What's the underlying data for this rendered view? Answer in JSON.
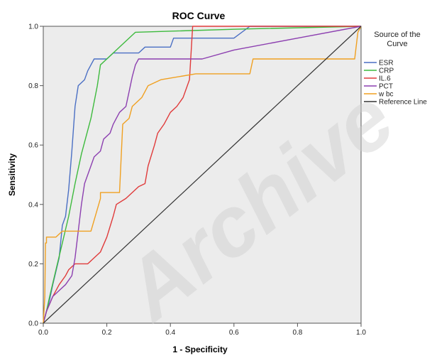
{
  "chart_data": {
    "type": "line",
    "title": "ROC Curve",
    "xlabel": "1 - Specificity",
    "ylabel": "Sensitivity",
    "xlim": [
      0,
      1
    ],
    "ylim": [
      0,
      1
    ],
    "x_ticks": [
      "0.0",
      "0.2",
      "0.4",
      "0.6",
      "0.8",
      "1.0"
    ],
    "y_ticks": [
      "0.0",
      "0.2",
      "0.4",
      "0.6",
      "0.8",
      "1.0"
    ],
    "grid": false,
    "plot_background": "#ececec",
    "legend": {
      "title_lines": [
        "Source of the",
        "Curve"
      ],
      "placement": "right"
    },
    "watermark": "Archive",
    "series": [
      {
        "name": "ESR",
        "color": "#4a6fc4",
        "points": [
          [
            0,
            0
          ],
          [
            0.01,
            0.04
          ],
          [
            0.02,
            0.08
          ],
          [
            0.03,
            0.13
          ],
          [
            0.05,
            0.22
          ],
          [
            0.06,
            0.33
          ],
          [
            0.07,
            0.36
          ],
          [
            0.08,
            0.45
          ],
          [
            0.09,
            0.58
          ],
          [
            0.1,
            0.73
          ],
          [
            0.11,
            0.8
          ],
          [
            0.13,
            0.82
          ],
          [
            0.14,
            0.85
          ],
          [
            0.16,
            0.89
          ],
          [
            0.2,
            0.89
          ],
          [
            0.22,
            0.91
          ],
          [
            0.3,
            0.91
          ],
          [
            0.32,
            0.93
          ],
          [
            0.4,
            0.93
          ],
          [
            0.41,
            0.96
          ],
          [
            0.6,
            0.96
          ],
          [
            0.65,
            1.0
          ],
          [
            1.0,
            1.0
          ]
        ]
      },
      {
        "name": "CRP",
        "color": "#3dba3d",
        "points": [
          [
            0,
            0
          ],
          [
            0.01,
            0.04
          ],
          [
            0.02,
            0.09
          ],
          [
            0.04,
            0.18
          ],
          [
            0.06,
            0.27
          ],
          [
            0.08,
            0.36
          ],
          [
            0.1,
            0.47
          ],
          [
            0.12,
            0.57
          ],
          [
            0.15,
            0.69
          ],
          [
            0.17,
            0.8
          ],
          [
            0.18,
            0.87
          ],
          [
            0.2,
            0.89
          ],
          [
            0.24,
            0.93
          ],
          [
            0.29,
            0.98
          ],
          [
            0.6,
            0.99
          ],
          [
            1.0,
            1.0
          ]
        ]
      },
      {
        "name": "IL.6",
        "color": "#e03a3a",
        "points": [
          [
            0,
            0
          ],
          [
            0.01,
            0.04
          ],
          [
            0.03,
            0.09
          ],
          [
            0.05,
            0.13
          ],
          [
            0.07,
            0.16
          ],
          [
            0.08,
            0.18
          ],
          [
            0.1,
            0.2
          ],
          [
            0.14,
            0.2
          ],
          [
            0.16,
            0.22
          ],
          [
            0.18,
            0.24
          ],
          [
            0.2,
            0.29
          ],
          [
            0.22,
            0.36
          ],
          [
            0.23,
            0.4
          ],
          [
            0.26,
            0.42
          ],
          [
            0.28,
            0.44
          ],
          [
            0.3,
            0.46
          ],
          [
            0.32,
            0.47
          ],
          [
            0.33,
            0.53
          ],
          [
            0.35,
            0.6
          ],
          [
            0.36,
            0.64
          ],
          [
            0.38,
            0.67
          ],
          [
            0.4,
            0.71
          ],
          [
            0.42,
            0.73
          ],
          [
            0.44,
            0.76
          ],
          [
            0.46,
            0.82
          ],
          [
            0.47,
            1.0
          ],
          [
            1.0,
            1.0
          ]
        ]
      },
      {
        "name": "PCT",
        "color": "#8c3fb0",
        "points": [
          [
            0,
            0
          ],
          [
            0.01,
            0.04
          ],
          [
            0.03,
            0.09
          ],
          [
            0.05,
            0.11
          ],
          [
            0.07,
            0.13
          ],
          [
            0.09,
            0.16
          ],
          [
            0.1,
            0.22
          ],
          [
            0.11,
            0.31
          ],
          [
            0.12,
            0.4
          ],
          [
            0.13,
            0.47
          ],
          [
            0.15,
            0.53
          ],
          [
            0.16,
            0.56
          ],
          [
            0.18,
            0.58
          ],
          [
            0.19,
            0.62
          ],
          [
            0.21,
            0.64
          ],
          [
            0.22,
            0.67
          ],
          [
            0.23,
            0.69
          ],
          [
            0.24,
            0.71
          ],
          [
            0.26,
            0.73
          ],
          [
            0.27,
            0.78
          ],
          [
            0.28,
            0.83
          ],
          [
            0.29,
            0.87
          ],
          [
            0.3,
            0.89
          ],
          [
            0.5,
            0.89
          ],
          [
            0.6,
            0.92
          ],
          [
            0.8,
            0.96
          ],
          [
            1.0,
            1.0
          ]
        ]
      },
      {
        "name": "w bc",
        "color": "#f0a020",
        "points": [
          [
            0,
            0
          ],
          [
            0.005,
            0.09
          ],
          [
            0.007,
            0.27
          ],
          [
            0.01,
            0.27
          ],
          [
            0.01,
            0.29
          ],
          [
            0.04,
            0.29
          ],
          [
            0.06,
            0.31
          ],
          [
            0.15,
            0.31
          ],
          [
            0.18,
            0.42
          ],
          [
            0.18,
            0.44
          ],
          [
            0.24,
            0.44
          ],
          [
            0.25,
            0.67
          ],
          [
            0.27,
            0.69
          ],
          [
            0.28,
            0.73
          ],
          [
            0.31,
            0.76
          ],
          [
            0.33,
            0.8
          ],
          [
            0.37,
            0.82
          ],
          [
            0.48,
            0.84
          ],
          [
            0.65,
            0.84
          ],
          [
            0.66,
            0.89
          ],
          [
            0.98,
            0.89
          ],
          [
            0.99,
            0.98
          ],
          [
            1.0,
            1.0
          ]
        ]
      },
      {
        "name": "Reference Line",
        "color": "#333333",
        "points": [
          [
            0,
            0
          ],
          [
            1,
            1
          ]
        ]
      }
    ]
  }
}
